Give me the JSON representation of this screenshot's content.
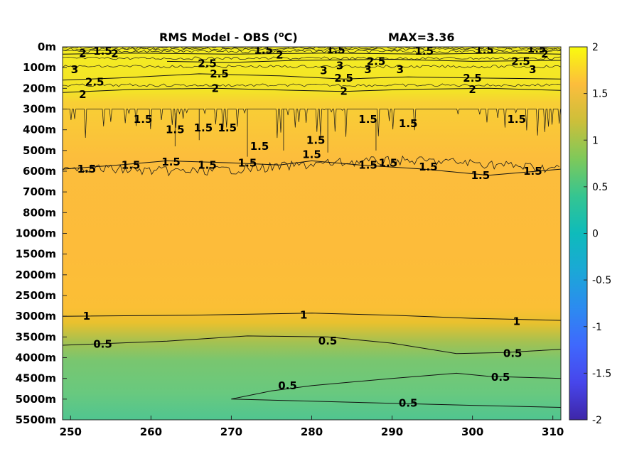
{
  "chart_data": {
    "type": "heatmap",
    "title_main": "RMS Model - OBS (",
    "title_sup": "o",
    "title_unit": "C)",
    "max_label": "MAX=3.36",
    "x_ticks": [
      "250",
      "260",
      "270",
      "280",
      "290",
      "300",
      "310"
    ],
    "x_tick_values": [
      250,
      260,
      270,
      280,
      290,
      300,
      310
    ],
    "xlim": [
      249,
      311
    ],
    "y_ticks": [
      "0m",
      "100m",
      "200m",
      "300m",
      "400m",
      "500m",
      "600m",
      "700m",
      "800m",
      "1000m",
      "1500m",
      "2000m",
      "2500m",
      "3000m",
      "3500m",
      "4000m",
      "4500m",
      "5000m",
      "5500m"
    ],
    "colorbar": {
      "range": [
        -2,
        2
      ],
      "ticks": [
        "2",
        "1.5",
        "1",
        "0.5",
        "0",
        "-0.5",
        "-1",
        "-1.5",
        "-2"
      ],
      "tick_values": [
        2,
        1.5,
        1,
        0.5,
        0,
        -0.5,
        -1,
        -1.5,
        -2
      ],
      "colormap": "parula"
    },
    "contour_labels": [
      {
        "text": "2",
        "x": 251.5,
        "level": 0.3
      },
      {
        "text": "1.5",
        "x": 254,
        "level": 0.2
      },
      {
        "text": "2",
        "x": 255.5,
        "level": 0.33
      },
      {
        "text": "1.5",
        "x": 274,
        "level": 0.15
      },
      {
        "text": "2",
        "x": 276,
        "level": 0.4
      },
      {
        "text": "1.5",
        "x": 283,
        "level": 0.15
      },
      {
        "text": "1.5",
        "x": 294,
        "level": 0.2
      },
      {
        "text": "1.5",
        "x": 301.5,
        "level": 0.15
      },
      {
        "text": "1.5",
        "x": 308,
        "level": 0.1
      },
      {
        "text": "2",
        "x": 309,
        "level": 0.35
      },
      {
        "text": "3",
        "x": 250.5,
        "level": 1.1
      },
      {
        "text": "2.5",
        "x": 253,
        "level": 1.7
      },
      {
        "text": "2",
        "x": 251.5,
        "level": 2.3
      },
      {
        "text": "2.5",
        "x": 267,
        "level": 0.8
      },
      {
        "text": "2.5",
        "x": 268.5,
        "level": 1.3
      },
      {
        "text": "2",
        "x": 268,
        "level": 2.0
      },
      {
        "text": "3",
        "x": 281.5,
        "level": 1.15
      },
      {
        "text": "3",
        "x": 283.5,
        "level": 0.9
      },
      {
        "text": "2.5",
        "x": 284,
        "level": 1.5
      },
      {
        "text": "2",
        "x": 284,
        "level": 2.15
      },
      {
        "text": "2.5",
        "x": 288,
        "level": 0.7
      },
      {
        "text": "3",
        "x": 287,
        "level": 1.1
      },
      {
        "text": "3",
        "x": 291,
        "level": 1.1
      },
      {
        "text": "2.5",
        "x": 300,
        "level": 1.5
      },
      {
        "text": "2",
        "x": 300,
        "level": 2.05
      },
      {
        "text": "2.5",
        "x": 306,
        "level": 0.7
      },
      {
        "text": "3",
        "x": 307.5,
        "level": 1.1
      },
      {
        "text": "1.5",
        "x": 252,
        "level": 5.9
      },
      {
        "text": "1.5",
        "x": 257.5,
        "level": 5.7
      },
      {
        "text": "1.5",
        "x": 262.5,
        "level": 5.55
      },
      {
        "text": "1.5",
        "x": 267,
        "level": 5.7
      },
      {
        "text": "1.5",
        "x": 272,
        "level": 5.6
      },
      {
        "text": "1.5",
        "x": 259,
        "level": 3.5
      },
      {
        "text": "1.5",
        "x": 263,
        "level": 4.0
      },
      {
        "text": "1.5",
        "x": 266.5,
        "level": 3.9
      },
      {
        "text": "1.5",
        "x": 269.5,
        "level": 3.9
      },
      {
        "text": "1.5",
        "x": 273.5,
        "level": 4.8
      },
      {
        "text": "1.5",
        "x": 280.5,
        "level": 4.5
      },
      {
        "text": "1.5",
        "x": 280,
        "level": 5.2
      },
      {
        "text": "1.5",
        "x": 287,
        "level": 5.7
      },
      {
        "text": "1.5",
        "x": 289.5,
        "level": 5.6
      },
      {
        "text": "1.5",
        "x": 294.5,
        "level": 5.8
      },
      {
        "text": "1.5",
        "x": 301,
        "level": 6.2
      },
      {
        "text": "1.5",
        "x": 307.5,
        "level": 6.0
      },
      {
        "text": "1.5",
        "x": 287,
        "level": 3.5
      },
      {
        "text": "1.5",
        "x": 292,
        "level": 3.7
      },
      {
        "text": "1.5",
        "x": 305.5,
        "level": 3.5
      },
      {
        "text": "1",
        "x": 252,
        "level": 13.0
      },
      {
        "text": "1",
        "x": 279,
        "level": 12.95
      },
      {
        "text": "1",
        "x": 305.5,
        "level": 13.25
      },
      {
        "text": "0.5",
        "x": 254,
        "level": 14.35
      },
      {
        "text": "0.5",
        "x": 282,
        "level": 14.2
      },
      {
        "text": "0.5",
        "x": 305,
        "level": 14.8
      },
      {
        "text": "0.5",
        "x": 277,
        "level": 16.35
      },
      {
        "text": "0.5",
        "x": 303.5,
        "level": 15.95
      },
      {
        "text": "0.5",
        "x": 292,
        "level": 17.2
      }
    ],
    "contour_lines": [
      {
        "value": 1,
        "points": [
          [
            249,
            13.0
          ],
          [
            265,
            12.95
          ],
          [
            280,
            12.85
          ],
          [
            290,
            12.95
          ],
          [
            300,
            13.1
          ],
          [
            311,
            13.2
          ]
        ]
      },
      {
        "value": 0.5,
        "points": [
          [
            249,
            14.4
          ],
          [
            262,
            14.2
          ],
          [
            272,
            13.95
          ],
          [
            282,
            14.0
          ],
          [
            290,
            14.3
          ],
          [
            298,
            14.8
          ],
          [
            304,
            14.75
          ],
          [
            311,
            14.6
          ]
        ]
      },
      {
        "value": 0.5,
        "points": [
          [
            270,
            17.0
          ],
          [
            275,
            16.6
          ],
          [
            280,
            16.35
          ],
          [
            290,
            16.0
          ],
          [
            298,
            15.75
          ],
          [
            302,
            15.9
          ],
          [
            311,
            16.0
          ]
        ]
      },
      {
        "value": 0.5,
        "points": [
          [
            270,
            17.0
          ],
          [
            280,
            17.1
          ],
          [
            290,
            17.2
          ],
          [
            300,
            17.3
          ],
          [
            311,
            17.4
          ]
        ]
      },
      {
        "value": 1.5,
        "points": [
          [
            249,
            5.9
          ],
          [
            256,
            5.7
          ],
          [
            262,
            5.5
          ],
          [
            270,
            5.6
          ],
          [
            276,
            5.7
          ],
          [
            280,
            5.5
          ],
          [
            286,
            5.7
          ],
          [
            294,
            5.9
          ],
          [
            302,
            6.2
          ],
          [
            311,
            5.9
          ]
        ]
      },
      {
        "value": 2,
        "points": [
          [
            249,
            2.2
          ],
          [
            258,
            2.05
          ],
          [
            268,
            2.0
          ],
          [
            278,
            2.1
          ],
          [
            284,
            2.15
          ],
          [
            292,
            2.05
          ],
          [
            302,
            2.0
          ],
          [
            311,
            2.1
          ]
        ]
      },
      {
        "value": 2.5,
        "points": [
          [
            249,
            1.6
          ],
          [
            256,
            1.5
          ],
          [
            266,
            1.3
          ],
          [
            276,
            1.4
          ],
          [
            284,
            1.55
          ],
          [
            292,
            1.45
          ],
          [
            300,
            1.5
          ],
          [
            311,
            1.55
          ]
        ]
      },
      {
        "value": 2.5,
        "points": [
          [
            262,
            0.7
          ],
          [
            270,
            0.75
          ],
          [
            278,
            0.65
          ],
          [
            290,
            0.6
          ],
          [
            300,
            0.7
          ],
          [
            311,
            0.65
          ]
        ]
      },
      {
        "value": 2,
        "points": [
          [
            249,
            0.35
          ],
          [
            258,
            0.3
          ],
          [
            270,
            0.35
          ],
          [
            282,
            0.3
          ],
          [
            294,
            0.35
          ],
          [
            304,
            0.3
          ],
          [
            311,
            0.35
          ]
        ]
      }
    ]
  }
}
